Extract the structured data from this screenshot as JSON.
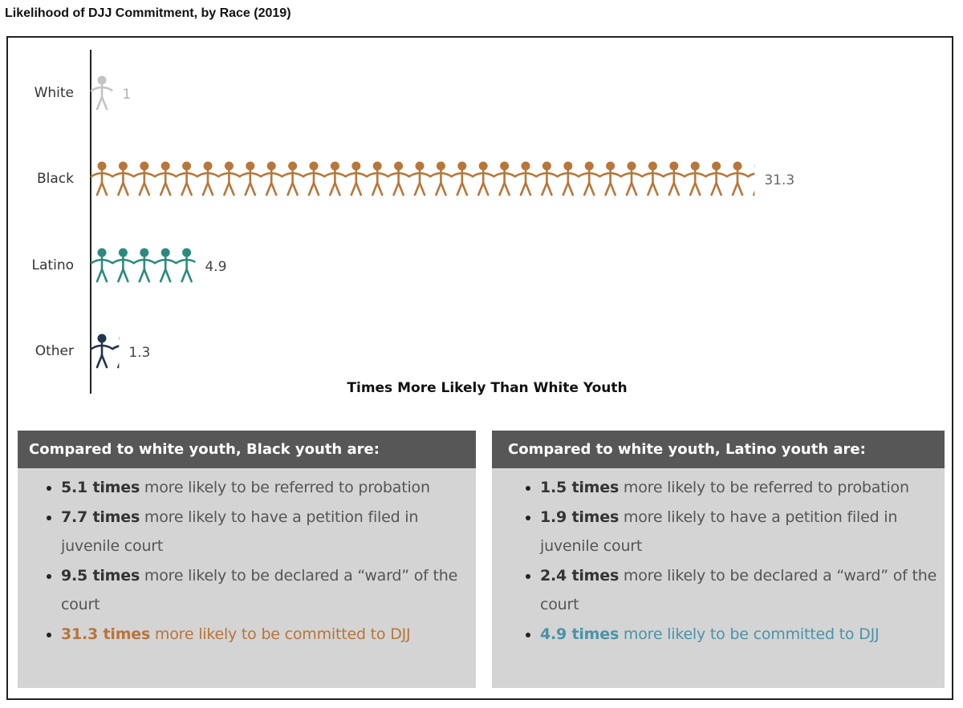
{
  "title": "Likelihood of DJJ Commitment, by Race (2019)",
  "chart_data": {
    "type": "bar",
    "subtype": "pictogram",
    "categories": [
      "White",
      "Black",
      "Latino",
      "Other"
    ],
    "values": [
      1,
      31.3,
      4.9,
      1.3
    ],
    "value_labels": [
      "1",
      "31.3",
      "4.9",
      "1.3"
    ],
    "colors": [
      "#c4c4c4",
      "#b8763a",
      "#2b8a80",
      "#24334f"
    ],
    "label_colors": [
      "#b0b0b0",
      "#666666",
      "#444444",
      "#444444"
    ],
    "xlabel": "Times More Likely Than White Youth",
    "ylabel": "",
    "orientation": "horizontal",
    "grid": false
  },
  "panels": [
    {
      "header": "Compared to white youth, Black youth are:",
      "items": [
        {
          "bold": "5.1 times",
          "text": " more likely to be referred to probation"
        },
        {
          "bold": "7.7 times",
          "text": " more likely to have a petition filed in juvenile court"
        },
        {
          "bold": "9.5 times",
          "text": " more likely to be declared a “ward” of the court"
        },
        {
          "bold": "31.3 times",
          "text": " more likely to be committed to DJJ"
        }
      ],
      "highlight_color": "#b8743a"
    },
    {
      "header": "Compared to white youth, Latino youth are:",
      "items": [
        {
          "bold": "1.5 times",
          "text": " more likely to be referred to probation"
        },
        {
          "bold": "1.9 times",
          "text": " more likely to have a petition filed in juvenile court"
        },
        {
          "bold": "2.4 times",
          "text": " more likely to be declared a “ward” of the court"
        },
        {
          "bold": "4.9 times",
          "text": " more likely to be committed to DJJ"
        }
      ],
      "highlight_color": "#4a93a8"
    }
  ]
}
